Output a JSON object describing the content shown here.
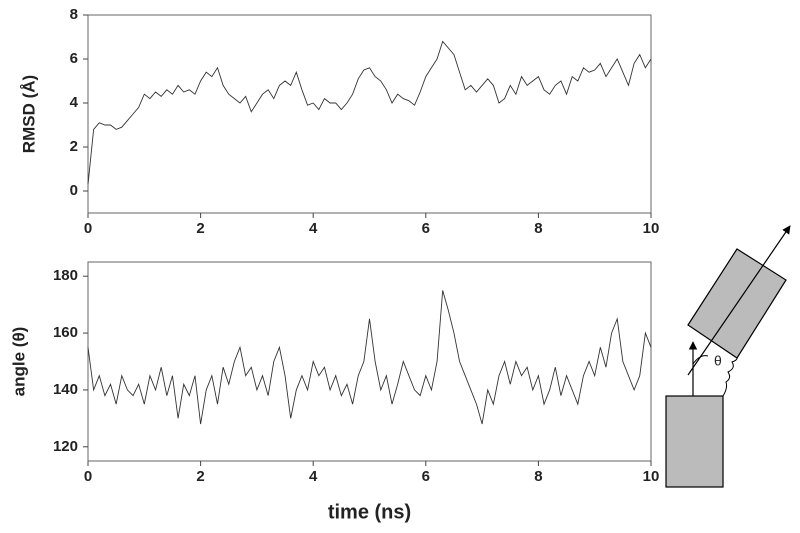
{
  "chart_data": [
    {
      "type": "line",
      "ylabel": "RMSD (Å)",
      "color": "#333333",
      "xlim": [
        0,
        10
      ],
      "xticks": [
        0,
        2,
        4,
        6,
        8,
        10
      ],
      "ylim": [
        -1,
        8
      ],
      "yticks": [
        0,
        2,
        4,
        6,
        8
      ],
      "x": [
        0,
        0.1,
        0.2,
        0.3,
        0.4,
        0.5,
        0.6,
        0.7,
        0.8,
        0.9,
        1,
        1.1,
        1.2,
        1.3,
        1.4,
        1.5,
        1.6,
        1.7,
        1.8,
        1.9,
        2,
        2.1,
        2.2,
        2.3,
        2.4,
        2.5,
        2.6,
        2.7,
        2.8,
        2.9,
        3,
        3.1,
        3.2,
        3.3,
        3.4,
        3.5,
        3.6,
        3.7,
        3.8,
        3.9,
        4,
        4.1,
        4.2,
        4.3,
        4.4,
        4.5,
        4.6,
        4.7,
        4.8,
        4.9,
        5,
        5.1,
        5.2,
        5.3,
        5.4,
        5.5,
        5.6,
        5.7,
        5.8,
        5.9,
        6,
        6.1,
        6.2,
        6.3,
        6.4,
        6.5,
        6.6,
        6.7,
        6.8,
        6.9,
        7,
        7.1,
        7.2,
        7.3,
        7.4,
        7.5,
        7.6,
        7.7,
        7.8,
        7.9,
        8,
        8.1,
        8.2,
        8.3,
        8.4,
        8.5,
        8.6,
        8.7,
        8.8,
        8.9,
        9,
        9.1,
        9.2,
        9.3,
        9.4,
        9.5,
        9.6,
        9.7,
        9.8,
        9.9,
        10
      ],
      "values": [
        0.3,
        2.8,
        3.1,
        3.0,
        3.0,
        2.8,
        2.9,
        3.2,
        3.5,
        3.8,
        4.4,
        4.2,
        4.5,
        4.3,
        4.6,
        4.4,
        4.8,
        4.5,
        4.6,
        4.4,
        5.0,
        5.4,
        5.2,
        5.6,
        4.8,
        4.4,
        4.2,
        4.0,
        4.3,
        3.6,
        4.0,
        4.4,
        4.6,
        4.2,
        4.8,
        5.0,
        4.8,
        5.4,
        4.6,
        3.9,
        4.0,
        3.7,
        4.2,
        4.0,
        4.0,
        3.7,
        4.0,
        4.4,
        5.1,
        5.5,
        5.6,
        5.2,
        5.0,
        4.6,
        4.0,
        4.4,
        4.2,
        4.1,
        3.9,
        4.5,
        5.2,
        5.6,
        6.0,
        6.8,
        6.5,
        6.2,
        5.4,
        4.6,
        4.8,
        4.5,
        4.8,
        5.1,
        4.8,
        4.0,
        4.2,
        4.8,
        4.4,
        5.2,
        4.8,
        5.0,
        5.2,
        4.6,
        4.4,
        4.8,
        5.0,
        4.4,
        5.2,
        5.0,
        5.6,
        5.4,
        5.5,
        5.8,
        5.2,
        5.6,
        6.0,
        5.4,
        4.8,
        5.8,
        6.2,
        5.6,
        6.0
      ]
    },
    {
      "type": "line",
      "ylabel": "angle (θ)",
      "xlabel": "time (ns)",
      "color": "#333333",
      "xlim": [
        0,
        10
      ],
      "xticks": [
        0,
        2,
        4,
        6,
        8,
        10
      ],
      "ylim": [
        115,
        185
      ],
      "yticks": [
        120,
        140,
        160,
        180
      ],
      "x": [
        0,
        0.1,
        0.2,
        0.3,
        0.4,
        0.5,
        0.6,
        0.7,
        0.8,
        0.9,
        1,
        1.1,
        1.2,
        1.3,
        1.4,
        1.5,
        1.6,
        1.7,
        1.8,
        1.9,
        2,
        2.1,
        2.2,
        2.3,
        2.4,
        2.5,
        2.6,
        2.7,
        2.8,
        2.9,
        3,
        3.1,
        3.2,
        3.3,
        3.4,
        3.5,
        3.6,
        3.7,
        3.8,
        3.9,
        4,
        4.1,
        4.2,
        4.3,
        4.4,
        4.5,
        4.6,
        4.7,
        4.8,
        4.9,
        5,
        5.1,
        5.2,
        5.3,
        5.4,
        5.5,
        5.6,
        5.7,
        5.8,
        5.9,
        6,
        6.1,
        6.2,
        6.3,
        6.4,
        6.5,
        6.6,
        6.7,
        6.8,
        6.9,
        7,
        7.1,
        7.2,
        7.3,
        7.4,
        7.5,
        7.6,
        7.7,
        7.8,
        7.9,
        8,
        8.1,
        8.2,
        8.3,
        8.4,
        8.5,
        8.6,
        8.7,
        8.8,
        8.9,
        9,
        9.1,
        9.2,
        9.3,
        9.4,
        9.5,
        9.6,
        9.7,
        9.8,
        9.9,
        10
      ],
      "values": [
        155,
        140,
        145,
        138,
        142,
        135,
        145,
        140,
        138,
        142,
        135,
        145,
        140,
        148,
        138,
        145,
        130,
        142,
        138,
        145,
        128,
        140,
        145,
        135,
        148,
        142,
        150,
        155,
        145,
        148,
        140,
        145,
        138,
        150,
        155,
        145,
        130,
        140,
        145,
        140,
        150,
        145,
        148,
        140,
        145,
        138,
        142,
        135,
        145,
        150,
        165,
        150,
        140,
        145,
        135,
        142,
        150,
        145,
        140,
        138,
        145,
        140,
        150,
        175,
        168,
        160,
        150,
        145,
        140,
        135,
        128,
        140,
        135,
        145,
        150,
        142,
        150,
        145,
        148,
        140,
        145,
        135,
        140,
        148,
        138,
        145,
        140,
        135,
        145,
        150,
        145,
        155,
        148,
        160,
        165,
        150,
        145,
        140,
        145,
        160,
        155
      ]
    }
  ],
  "diagram": {
    "angle_label": "θ"
  }
}
